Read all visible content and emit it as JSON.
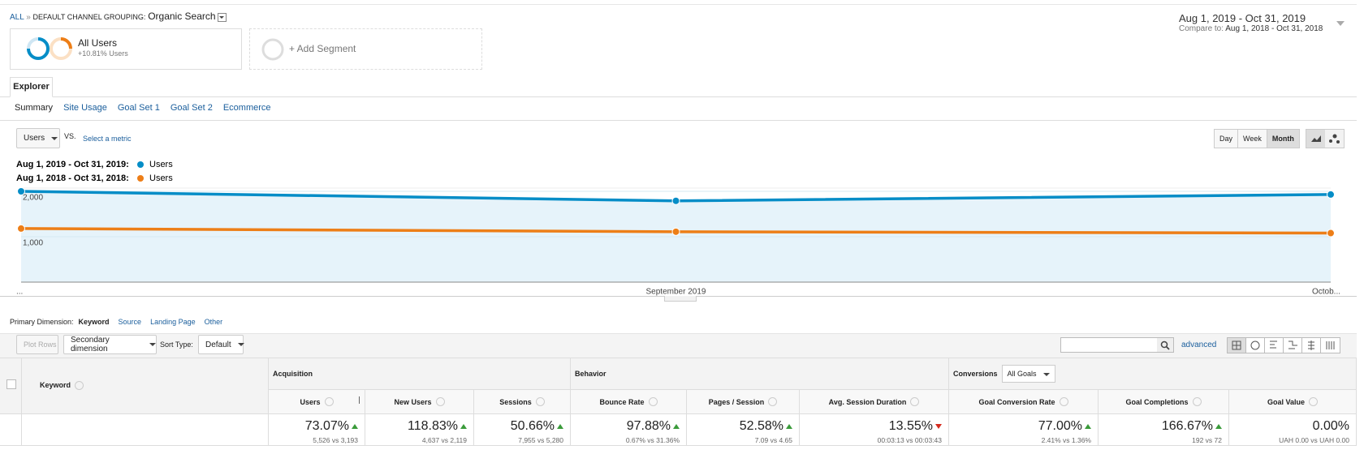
{
  "breadcrumb": {
    "root": "ALL",
    "separator": "»",
    "label": "DEFAULT CHANNEL GROUPING:",
    "value": "Organic Search"
  },
  "date_range": {
    "current": "Aug 1, 2019 - Oct 31, 2019",
    "compare_label": "Compare to:",
    "compare": "Aug 1, 2018 - Oct 31, 2018"
  },
  "segments": {
    "name": "All Users",
    "detail": "+10.81% Users",
    "add": "+ Add Segment"
  },
  "tabs": [
    "Explorer"
  ],
  "subtabs": [
    "Summary",
    "Site Usage",
    "Goal Set 1",
    "Goal Set 2",
    "Ecommerce"
  ],
  "metric": {
    "selected": "Users",
    "vs": "VS.",
    "other": "Select a metric"
  },
  "granularity": {
    "options": [
      "Day",
      "Week",
      "Month"
    ],
    "active": 2
  },
  "chart_data": {
    "type": "line",
    "categories": [
      "...",
      "September 2019",
      "Octob..."
    ],
    "series": [
      {
        "period": "Aug 1, 2019 - Oct 31, 2019:",
        "name": "Users",
        "color": "#058dc7",
        "values": [
          2000,
          1790,
          1930
        ]
      },
      {
        "period": "Aug 1, 2018 - Oct 31, 2018:",
        "name": "Users",
        "color": "#ed7e17",
        "values": [
          1180,
          1110,
          1080
        ]
      }
    ],
    "ylim": [
      0,
      2000
    ],
    "yticks": [
      {
        "value": 1000,
        "label": "1,000"
      },
      {
        "value": 2000,
        "label": "2,000"
      }
    ],
    "area_under_first": true
  },
  "dimensions": {
    "label": "Primary Dimension:",
    "options": [
      "Keyword",
      "Source",
      "Landing Page",
      "Other"
    ],
    "active": 0
  },
  "toolbar": {
    "plot_rows": "Plot Rows",
    "secondary": "Secondary dimension",
    "sort_label": "Sort Type:",
    "sort": "Default",
    "advanced": "advanced"
  },
  "table": {
    "dimension": "Keyword",
    "groups": [
      {
        "name": "Acquisition",
        "span": 3
      },
      {
        "name": "Behavior",
        "span": 3
      },
      {
        "name": "Conversions",
        "span": 3,
        "filter": "All Goals"
      }
    ],
    "columns": [
      "Users",
      "New Users",
      "Sessions",
      "Bounce Rate",
      "Pages / Session",
      "Avg. Session Duration",
      "Goal Conversion Rate",
      "Goal Completions",
      "Goal Value"
    ],
    "sort_column": 0,
    "totals": [
      {
        "change": "73.07%",
        "detail": "5,526 vs 3,193",
        "trend": "up"
      },
      {
        "change": "118.83%",
        "detail": "4,637 vs 2,119",
        "trend": "up"
      },
      {
        "change": "50.66%",
        "detail": "7,955 vs 5,280",
        "trend": "up"
      },
      {
        "change": "97.88%",
        "detail": "0.67% vs 31.36%",
        "trend": "up"
      },
      {
        "change": "52.58%",
        "detail": "7.09 vs 4.65",
        "trend": "up"
      },
      {
        "change": "13.55%",
        "detail": "00:03:13 vs 00:03:43",
        "trend": "down"
      },
      {
        "change": "77.00%",
        "detail": "2.41% vs 1.36%",
        "trend": "up"
      },
      {
        "change": "166.67%",
        "detail": "192 vs 72",
        "trend": "up"
      },
      {
        "change": "0.00%",
        "detail": "UAH 0.00 vs UAH 0.00"
      }
    ]
  }
}
